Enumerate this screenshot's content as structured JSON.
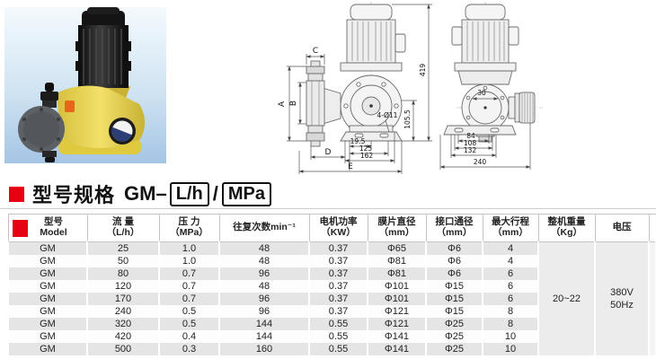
{
  "heading": {
    "title": "型号规格",
    "model_prefix": "GM–",
    "unit_box1": "L/h",
    "separator": "/",
    "unit_box2": "MPa",
    "bullet_color": "#e60012"
  },
  "photo": {
    "colors": {
      "background_top": "#f4fafd",
      "background_bottom": "#a5c5e4",
      "motor": "#1b1b1b",
      "body_yellow": "#e8d24a",
      "head_gray": "#5d6165",
      "knob_orange": "#e8651c",
      "dial_navy": "#2c3e75"
    }
  },
  "drawings": {
    "front_view": {
      "label_a": "A",
      "label_b": "B",
      "label_c": "C",
      "label_d": "D",
      "label_e": "E",
      "height_total": "419",
      "bolt_holes": "4-Ø11",
      "dim_105_5": "105.5",
      "dim_19_5": "19.5",
      "dim_125": "125",
      "dim_162": "162"
    },
    "side_view": {
      "dim_30": "30",
      "dim_84": "84",
      "dim_108": "108",
      "dim_132": "132",
      "dim_240": "240"
    }
  },
  "table": {
    "headers": [
      {
        "line1": "型号",
        "line2": "Model"
      },
      {
        "line1": "流 量",
        "line2": "（L/h）"
      },
      {
        "line1": "压 力",
        "line2": "（MPa）"
      },
      {
        "line1": "往复次数min⁻¹",
        "line2": ""
      },
      {
        "line1": "电机功率",
        "line2": "（KW）"
      },
      {
        "line1": "膜片直径",
        "line2": "（mm）"
      },
      {
        "line1": "接口通径",
        "line2": "（mm）"
      },
      {
        "line1": "最大行程",
        "line2": "（mm）"
      },
      {
        "line1": "整机重量",
        "line2": "（Kg）"
      },
      {
        "line1": "电压",
        "line2": ""
      }
    ],
    "rows": [
      [
        "GM",
        "25",
        "1.0",
        "48",
        "0.37",
        "Φ65",
        "Φ6",
        "4"
      ],
      [
        "GM",
        "50",
        "1.0",
        "48",
        "0.37",
        "Φ81",
        "Φ6",
        "4"
      ],
      [
        "GM",
        "80",
        "0.7",
        "96",
        "0.37",
        "Φ81",
        "Φ6",
        "6"
      ],
      [
        "GM",
        "120",
        "0.7",
        "48",
        "0.37",
        "Φ101",
        "Φ15",
        "6"
      ],
      [
        "GM",
        "170",
        "0.7",
        "96",
        "0.37",
        "Φ101",
        "Φ15",
        "6"
      ],
      [
        "GM",
        "240",
        "0.5",
        "96",
        "0.37",
        "Φ121",
        "Φ15",
        "8"
      ],
      [
        "GM",
        "320",
        "0.5",
        "144",
        "0.55",
        "Φ121",
        "Φ25",
        "8"
      ],
      [
        "GM",
        "420",
        "0.4",
        "144",
        "0.55",
        "Φ141",
        "Φ25",
        "10"
      ],
      [
        "GM",
        "500",
        "0.3",
        "160",
        "0.55",
        "Φ141",
        "Φ25",
        "10"
      ]
    ],
    "merged": {
      "weight": "20~22",
      "voltage_line1": "380V",
      "voltage_line2": "50Hz"
    }
  }
}
